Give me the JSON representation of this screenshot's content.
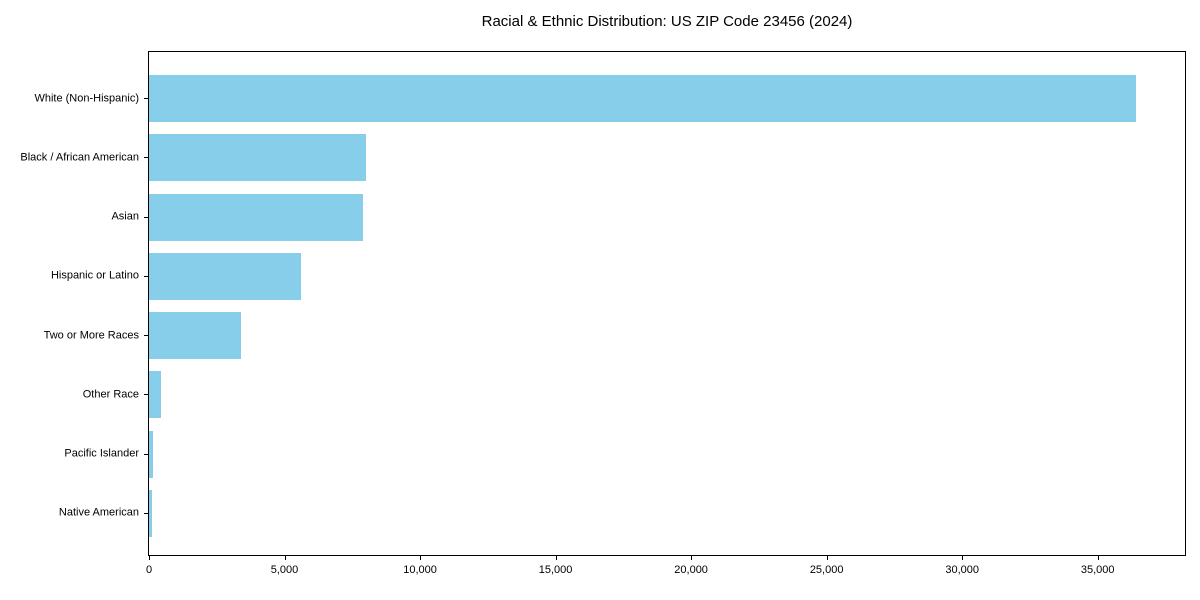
{
  "chart_data": {
    "type": "bar",
    "orientation": "horizontal",
    "title": "Racial & Ethnic Distribution: US ZIP Code 23456 (2024)",
    "categories": [
      "White (Non-Hispanic)",
      "Black / African American",
      "Asian",
      "Hispanic or Latino",
      "Two or More Races",
      "Other Race",
      "Pacific Islander",
      "Native American"
    ],
    "values": [
      36400,
      8000,
      7900,
      5600,
      3400,
      450,
      150,
      100
    ],
    "xlabel": "",
    "ylabel": "",
    "xlim": [
      0,
      38220
    ],
    "x_ticks": [
      0,
      5000,
      10000,
      15000,
      20000,
      25000,
      30000,
      35000
    ],
    "x_tick_labels": [
      "0",
      "5,000",
      "10,000",
      "15,000",
      "20,000",
      "25,000",
      "30,000",
      "35,000"
    ],
    "grid": "off",
    "legend": "none",
    "bar_color": "#87CEEB",
    "background_color": "#ffffff",
    "spine_color": "#000000"
  }
}
